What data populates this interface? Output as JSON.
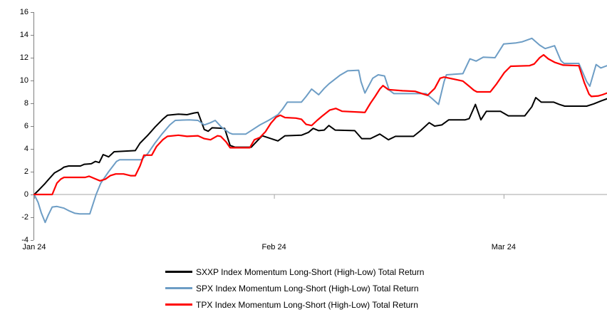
{
  "chart_data": {
    "type": "line",
    "title": "",
    "background_color": "#FFFFFF",
    "axis_line_color": "#808080",
    "zero_line_color": "#A6A6A6",
    "x_axis": {
      "tick_labels": [
        "Jan 24",
        "Feb 24",
        "Mar 24"
      ],
      "tick_days": [
        0,
        30.6,
        59.9
      ]
    },
    "y_axis": {
      "min": -4,
      "max": 16,
      "step": 2,
      "tick_labels": [
        "16",
        "14",
        "12",
        "10",
        "8",
        "6",
        "4",
        "2",
        "0",
        "-2",
        "-4"
      ]
    },
    "legend_position": "bottom",
    "grid": false,
    "series": [
      {
        "name": "SXXP Index Momentum Long-Short (High-Low) Total Return",
        "color": "#000000",
        "width": 2,
        "points": [
          [
            0,
            0
          ],
          [
            0.6,
            0.4
          ],
          [
            1.3,
            0.9
          ],
          [
            2.0,
            1.45
          ],
          [
            2.6,
            1.9
          ],
          [
            3.4,
            2.2
          ],
          [
            3.8,
            2.4
          ],
          [
            4.4,
            2.5
          ],
          [
            5.9,
            2.5
          ],
          [
            6.4,
            2.65
          ],
          [
            7.3,
            2.7
          ],
          [
            7.8,
            2.9
          ],
          [
            8.3,
            2.8
          ],
          [
            8.8,
            3.5
          ],
          [
            9.5,
            3.3
          ],
          [
            10.2,
            3.75
          ],
          [
            12.9,
            3.85
          ],
          [
            13.5,
            4.5
          ],
          [
            14.5,
            5.2
          ],
          [
            15.4,
            5.9
          ],
          [
            16.4,
            6.6
          ],
          [
            17.0,
            6.95
          ],
          [
            18.4,
            7.05
          ],
          [
            19.5,
            7.0
          ],
          [
            20.4,
            7.15
          ],
          [
            20.9,
            7.2
          ],
          [
            21.7,
            5.7
          ],
          [
            22.2,
            5.55
          ],
          [
            22.7,
            5.85
          ],
          [
            24.3,
            5.8
          ],
          [
            25.0,
            4.3
          ],
          [
            25.6,
            4.15
          ],
          [
            27.7,
            4.15
          ],
          [
            28.6,
            4.8
          ],
          [
            29.1,
            5.15
          ],
          [
            30.0,
            4.95
          ],
          [
            31.1,
            4.7
          ],
          [
            32.0,
            5.15
          ],
          [
            34.1,
            5.2
          ],
          [
            35.0,
            5.45
          ],
          [
            35.6,
            5.8
          ],
          [
            36.3,
            5.6
          ],
          [
            37.0,
            5.65
          ],
          [
            37.6,
            6.05
          ],
          [
            38.4,
            5.65
          ],
          [
            40.9,
            5.6
          ],
          [
            41.8,
            4.9
          ],
          [
            42.9,
            4.9
          ],
          [
            44.1,
            5.3
          ],
          [
            45.2,
            4.8
          ],
          [
            46.1,
            5.1
          ],
          [
            48.4,
            5.1
          ],
          [
            49.3,
            5.6
          ],
          [
            50.4,
            6.3
          ],
          [
            51.1,
            6.0
          ],
          [
            52.0,
            6.1
          ],
          [
            52.9,
            6.55
          ],
          [
            55.0,
            6.55
          ],
          [
            55.5,
            6.65
          ],
          [
            56.3,
            7.9
          ],
          [
            57.0,
            6.55
          ],
          [
            57.7,
            7.3
          ],
          [
            59.5,
            7.3
          ],
          [
            60.5,
            6.9
          ],
          [
            62.6,
            6.9
          ],
          [
            63.5,
            7.7
          ],
          [
            64.0,
            8.5
          ],
          [
            64.7,
            8.1
          ],
          [
            66.3,
            8.1
          ],
          [
            67.0,
            7.9
          ],
          [
            67.7,
            7.75
          ],
          [
            70.5,
            7.75
          ],
          [
            71.4,
            7.95
          ],
          [
            72.3,
            8.2
          ],
          [
            73.1,
            8.4
          ]
        ]
      },
      {
        "name": "SPX Index Momentum Long-Short (High-Low) Total Return",
        "color": "#6D9DC5",
        "width": 2,
        "points": [
          [
            0,
            0
          ],
          [
            0.5,
            -0.7
          ],
          [
            0.9,
            -1.6
          ],
          [
            1.4,
            -2.45
          ],
          [
            1.8,
            -1.8
          ],
          [
            2.3,
            -1.1
          ],
          [
            2.9,
            -1.05
          ],
          [
            3.8,
            -1.2
          ],
          [
            4.5,
            -1.45
          ],
          [
            5.2,
            -1.65
          ],
          [
            5.8,
            -1.7
          ],
          [
            7.1,
            -1.7
          ],
          [
            7.9,
            0.0
          ],
          [
            8.5,
            1.0
          ],
          [
            9.5,
            2.0
          ],
          [
            10.5,
            2.9
          ],
          [
            10.9,
            3.05
          ],
          [
            13.7,
            3.05
          ],
          [
            14.5,
            3.6
          ],
          [
            15.4,
            4.5
          ],
          [
            16.3,
            5.3
          ],
          [
            17.3,
            6.1
          ],
          [
            18.0,
            6.5
          ],
          [
            19.8,
            6.55
          ],
          [
            20.9,
            6.5
          ],
          [
            21.7,
            6.1
          ],
          [
            22.5,
            6.3
          ],
          [
            23.1,
            6.5
          ],
          [
            23.9,
            5.9
          ],
          [
            24.9,
            5.4
          ],
          [
            25.3,
            5.3
          ],
          [
            27.0,
            5.3
          ],
          [
            27.9,
            5.7
          ],
          [
            28.8,
            6.1
          ],
          [
            29.9,
            6.5
          ],
          [
            31.1,
            7.0
          ],
          [
            31.7,
            7.5
          ],
          [
            32.3,
            8.1
          ],
          [
            34.1,
            8.1
          ],
          [
            34.7,
            8.6
          ],
          [
            35.4,
            9.25
          ],
          [
            36.3,
            8.75
          ],
          [
            37.0,
            9.3
          ],
          [
            37.6,
            9.7
          ],
          [
            39.0,
            10.45
          ],
          [
            40.0,
            10.85
          ],
          [
            41.4,
            10.9
          ],
          [
            41.7,
            9.9
          ],
          [
            42.2,
            8.9
          ],
          [
            43.2,
            10.2
          ],
          [
            43.9,
            10.5
          ],
          [
            44.7,
            10.4
          ],
          [
            45.3,
            9.15
          ],
          [
            45.9,
            8.85
          ],
          [
            50.0,
            8.85
          ],
          [
            50.8,
            8.4
          ],
          [
            51.6,
            7.9
          ],
          [
            52.3,
            9.9
          ],
          [
            52.6,
            10.5
          ],
          [
            54.7,
            10.6
          ],
          [
            55.6,
            11.9
          ],
          [
            56.4,
            11.7
          ],
          [
            57.3,
            12.05
          ],
          [
            58.8,
            12.0
          ],
          [
            59.9,
            13.2
          ],
          [
            61.5,
            13.3
          ],
          [
            62.3,
            13.4
          ],
          [
            63.5,
            13.7
          ],
          [
            64.5,
            13.1
          ],
          [
            65.2,
            12.8
          ],
          [
            66.4,
            13.05
          ],
          [
            67.2,
            11.75
          ],
          [
            67.6,
            11.5
          ],
          [
            69.5,
            11.5
          ],
          [
            70.5,
            9.9
          ],
          [
            70.9,
            9.5
          ],
          [
            71.7,
            11.4
          ],
          [
            72.3,
            11.1
          ],
          [
            73.1,
            11.3
          ]
        ]
      },
      {
        "name": "TPX Index Momentum Long-Short (High-Low) Total Return",
        "color": "#FF0000",
        "width": 2.2,
        "points": [
          [
            0,
            0
          ],
          [
            2.3,
            0.0
          ],
          [
            2.9,
            1.0
          ],
          [
            3.4,
            1.35
          ],
          [
            3.8,
            1.5
          ],
          [
            6.5,
            1.5
          ],
          [
            7.0,
            1.6
          ],
          [
            7.7,
            1.4
          ],
          [
            8.4,
            1.2
          ],
          [
            9.1,
            1.35
          ],
          [
            9.7,
            1.65
          ],
          [
            10.4,
            1.8
          ],
          [
            11.4,
            1.8
          ],
          [
            12.3,
            1.65
          ],
          [
            12.9,
            1.65
          ],
          [
            13.5,
            2.5
          ],
          [
            14.0,
            3.45
          ],
          [
            15.0,
            3.45
          ],
          [
            15.6,
            4.2
          ],
          [
            16.4,
            4.8
          ],
          [
            17.0,
            5.1
          ],
          [
            18.4,
            5.2
          ],
          [
            19.5,
            5.1
          ],
          [
            20.9,
            5.15
          ],
          [
            21.7,
            4.9
          ],
          [
            22.5,
            4.8
          ],
          [
            23.4,
            5.15
          ],
          [
            23.8,
            5.1
          ],
          [
            24.5,
            4.6
          ],
          [
            25.0,
            4.1
          ],
          [
            27.5,
            4.1
          ],
          [
            28.1,
            4.8
          ],
          [
            28.8,
            5.0
          ],
          [
            29.5,
            5.5
          ],
          [
            30.2,
            6.25
          ],
          [
            30.9,
            6.8
          ],
          [
            31.4,
            6.95
          ],
          [
            32.0,
            6.75
          ],
          [
            33.4,
            6.7
          ],
          [
            34.1,
            6.6
          ],
          [
            34.7,
            6.15
          ],
          [
            35.4,
            6.05
          ],
          [
            36.1,
            6.5
          ],
          [
            36.7,
            6.85
          ],
          [
            37.7,
            7.4
          ],
          [
            38.5,
            7.55
          ],
          [
            39.3,
            7.3
          ],
          [
            42.2,
            7.2
          ],
          [
            42.9,
            8.0
          ],
          [
            43.5,
            8.6
          ],
          [
            44.1,
            9.25
          ],
          [
            44.5,
            9.55
          ],
          [
            45.2,
            9.2
          ],
          [
            47.0,
            9.1
          ],
          [
            48.6,
            9.05
          ],
          [
            49.5,
            8.85
          ],
          [
            50.2,
            8.7
          ],
          [
            51.1,
            9.3
          ],
          [
            51.8,
            10.2
          ],
          [
            52.3,
            10.3
          ],
          [
            54.7,
            9.95
          ],
          [
            55.5,
            9.5
          ],
          [
            56.1,
            9.15
          ],
          [
            56.5,
            9.0
          ],
          [
            58.2,
            9.0
          ],
          [
            59.0,
            9.7
          ],
          [
            60.0,
            10.7
          ],
          [
            60.8,
            11.25
          ],
          [
            63.2,
            11.3
          ],
          [
            63.8,
            11.45
          ],
          [
            64.5,
            12.0
          ],
          [
            65.0,
            12.25
          ],
          [
            65.6,
            11.9
          ],
          [
            66.4,
            11.6
          ],
          [
            67.5,
            11.35
          ],
          [
            69.5,
            11.3
          ],
          [
            70.2,
            9.8
          ],
          [
            70.8,
            8.8
          ],
          [
            71.1,
            8.6
          ],
          [
            72.0,
            8.65
          ],
          [
            72.5,
            8.75
          ],
          [
            73.1,
            8.9
          ]
        ]
      }
    ]
  }
}
